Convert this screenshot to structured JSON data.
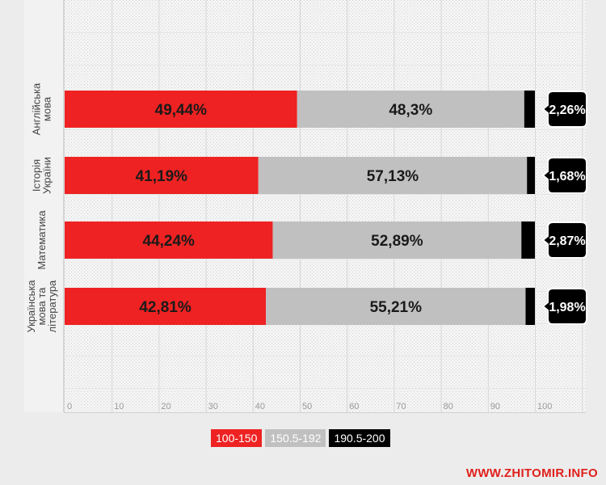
{
  "chart_data": {
    "type": "bar",
    "orientation": "horizontal",
    "stacked": true,
    "categories": [
      "Англійська мова",
      "Історія України",
      "Математика",
      "Українська мова та література"
    ],
    "series": [
      {
        "name": "100-150",
        "color": "#ee2222",
        "values": [
          49.44,
          41.19,
          44.24,
          42.81
        ],
        "labels": [
          "49,44%",
          "41,19%",
          "44,24%",
          "42,81%"
        ]
      },
      {
        "name": "150.5-192",
        "color": "#c0c0c0",
        "values": [
          48.3,
          57.13,
          52.89,
          55.21
        ],
        "labels": [
          "48,3%",
          "57,13%",
          "52,89%",
          "55,21%"
        ]
      },
      {
        "name": "190.5-200",
        "color": "#000000",
        "values": [
          2.26,
          1.68,
          2.87,
          1.98
        ],
        "labels": [
          "2,26%",
          "1,68%",
          "2,87%",
          "1,98%"
        ]
      }
    ],
    "xlim": [
      0,
      110
    ],
    "xticks": [
      "0",
      "10",
      "20",
      "30",
      "40",
      "50",
      "60",
      "70",
      "80",
      "90",
      "100"
    ],
    "grid": true,
    "legend_position": "bottom-center"
  },
  "watermark": "WWW.ZHITOMIR.INFO"
}
